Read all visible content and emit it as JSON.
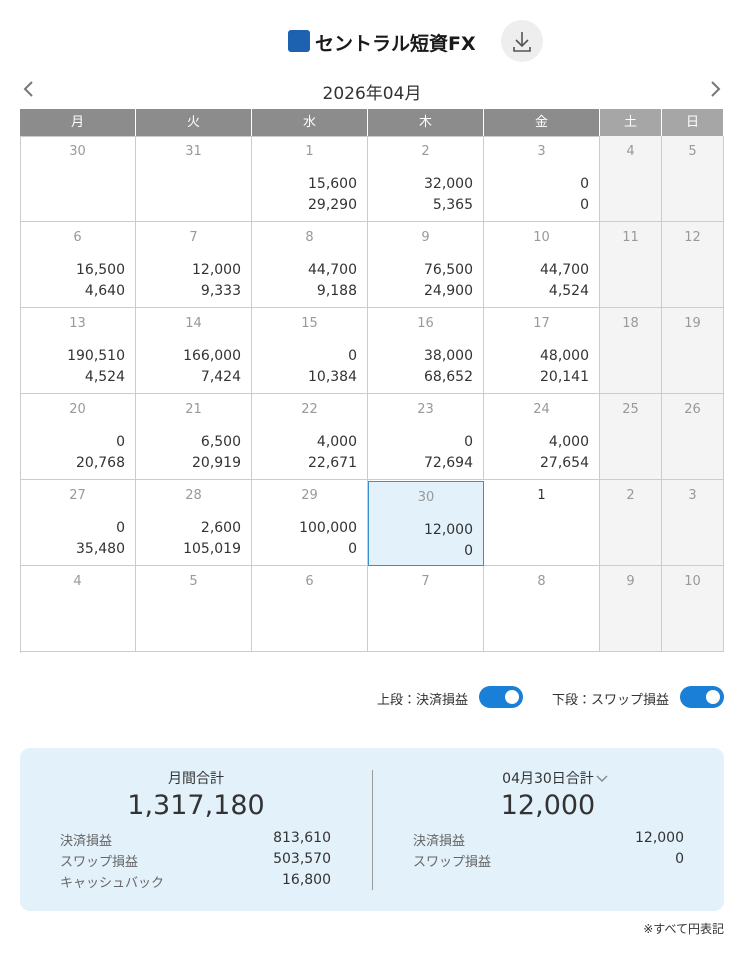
{
  "header": {
    "logo": "セントラル短資FX"
  },
  "calendar": {
    "month": "2026年04月",
    "weekdays": [
      "月",
      "火",
      "水",
      "木",
      "金",
      "土",
      "日"
    ],
    "weeks": [
      [
        {
          "day": "30"
        },
        {
          "day": "31"
        },
        {
          "day": "1",
          "upper": "15,600",
          "lower": "29,290"
        },
        {
          "day": "2",
          "upper": "32,000",
          "lower": "5,365"
        },
        {
          "day": "3",
          "upper": "0",
          "lower": "0"
        },
        {
          "day": "4"
        },
        {
          "day": "5"
        }
      ],
      [
        {
          "day": "6",
          "upper": "16,500",
          "lower": "4,640"
        },
        {
          "day": "7",
          "upper": "12,000",
          "lower": "9,333"
        },
        {
          "day": "8",
          "upper": "44,700",
          "lower": "9,188"
        },
        {
          "day": "9",
          "upper": "76,500",
          "lower": "24,900"
        },
        {
          "day": "10",
          "upper": "44,700",
          "lower": "4,524"
        },
        {
          "day": "11"
        },
        {
          "day": "12"
        }
      ],
      [
        {
          "day": "13",
          "upper": "190,510",
          "lower": "4,524"
        },
        {
          "day": "14",
          "upper": "166,000",
          "lower": "7,424"
        },
        {
          "day": "15",
          "upper": "0",
          "lower": "10,384"
        },
        {
          "day": "16",
          "upper": "38,000",
          "lower": "68,652"
        },
        {
          "day": "17",
          "upper": "48,000",
          "lower": "20,141"
        },
        {
          "day": "18"
        },
        {
          "day": "19"
        }
      ],
      [
        {
          "day": "20",
          "upper": "0",
          "lower": "20,768"
        },
        {
          "day": "21",
          "upper": "6,500",
          "lower": "20,919"
        },
        {
          "day": "22",
          "upper": "4,000",
          "lower": "22,671"
        },
        {
          "day": "23",
          "upper": "0",
          "lower": "72,694"
        },
        {
          "day": "24",
          "upper": "4,000",
          "lower": "27,654"
        },
        {
          "day": "25"
        },
        {
          "day": "26"
        }
      ],
      [
        {
          "day": "27",
          "upper": "0",
          "lower": "35,480"
        },
        {
          "day": "28",
          "upper": "2,600",
          "lower": "105,019"
        },
        {
          "day": "29",
          "upper": "100,000",
          "lower": "0"
        },
        {
          "day": "30",
          "upper": "12,000",
          "lower": "0"
        },
        {
          "day": "1"
        },
        {
          "day": "2"
        },
        {
          "day": "3"
        }
      ],
      [
        {
          "day": "4"
        },
        {
          "day": "5"
        },
        {
          "day": "6"
        },
        {
          "day": "7"
        },
        {
          "day": "8"
        },
        {
          "day": "9"
        },
        {
          "day": "10"
        }
      ]
    ]
  },
  "toggles": [
    {
      "label": "上段：決済損益"
    },
    {
      "label": "下段：スワップ損益"
    }
  ],
  "summary": {
    "monthly": {
      "title": "月間合計",
      "total": "1,317,180",
      "rows": [
        {
          "label": "決済損益",
          "value": "813,610"
        },
        {
          "label": "スワップ損益",
          "value": "503,570"
        },
        {
          "label": "キャッシュバック",
          "value": "16,800"
        }
      ]
    },
    "daily": {
      "title": "04月30日合計",
      "total": "12,000",
      "rows": [
        {
          "label": "決済損益",
          "value": "12,000"
        },
        {
          "label": "スワップ損益",
          "value": "0"
        }
      ]
    }
  },
  "footer": "※すべて円表記"
}
